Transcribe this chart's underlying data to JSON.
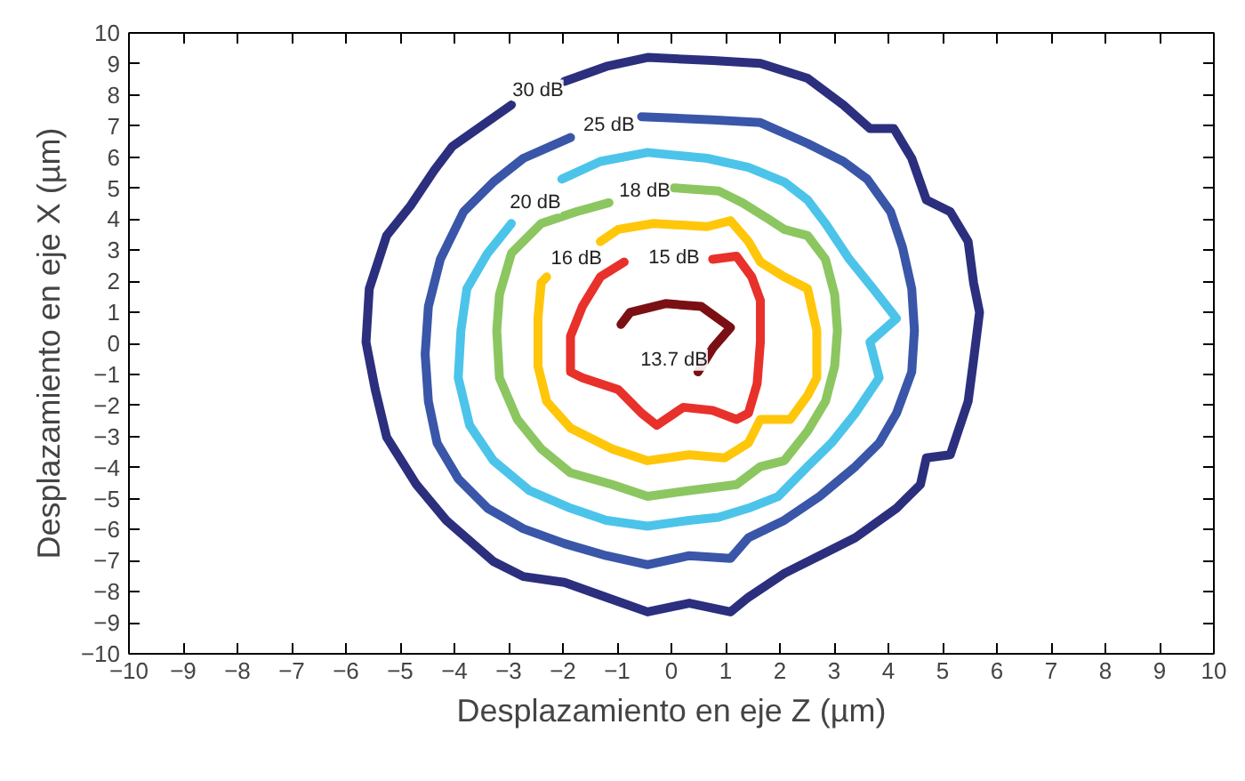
{
  "chart_data": {
    "type": "line",
    "xlabel": "Desplazamiento en eje Z (µm)",
    "ylabel": "Desplazamiento en eje X (µm)",
    "xlim": [
      -10,
      10
    ],
    "ylim": [
      -10,
      10
    ],
    "xticks": [
      -10,
      -9,
      -8,
      -7,
      -6,
      -5,
      -4,
      -3,
      -2,
      -1,
      0,
      1,
      2,
      3,
      4,
      5,
      6,
      7,
      8,
      9,
      10
    ],
    "yticks": [
      -10,
      -9,
      -8,
      -7,
      -6,
      -5,
      -4,
      -3,
      -2,
      -1,
      0,
      1,
      2,
      3,
      4,
      5,
      6,
      7,
      8,
      9,
      10
    ],
    "grid": false,
    "line_style": "solid",
    "marker": "none",
    "series": [
      {
        "color": "#2b2f7e",
        "x": [
          -1.97,
          -1.2,
          -0.44,
          0.76,
          1.64,
          2.51,
          3.17,
          3.66,
          4.1,
          4.43,
          4.7,
          5.14,
          5.47,
          5.57,
          5.68,
          5.57,
          5.47,
          5.14,
          4.7,
          4.59,
          4.15,
          3.39,
          2.73,
          2.08,
          1.42,
          1.09,
          0.33,
          -0.44,
          -1.2,
          -1.97,
          -2.73,
          -3.28,
          -4.15,
          -4.7,
          -5.25,
          -5.46,
          -5.63,
          -5.57,
          -5.25,
          -4.81,
          -4.37,
          -4.04,
          -2.95
        ],
        "values": [
          8.44,
          8.92,
          9.21,
          9.11,
          9.02,
          8.54,
          7.68,
          6.92,
          6.92,
          5.96,
          4.62,
          4.24,
          3.28,
          1.95,
          1.0,
          -0.54,
          -1.87,
          -3.59,
          -3.69,
          -4.55,
          -5.31,
          -6.26,
          -6.84,
          -7.41,
          -8.18,
          -8.65,
          -8.37,
          -8.65,
          -8.18,
          -7.7,
          -7.51,
          -7.03,
          -5.7,
          -4.55,
          -3.02,
          -1.49,
          0.04,
          1.76,
          3.47,
          4.43,
          5.58,
          6.34,
          7.68
        ]
      },
      {
        "color": "#3a56a8",
        "x": [
          -0.55,
          0.76,
          1.64,
          2.51,
          3.17,
          3.61,
          4.04,
          4.26,
          4.43,
          4.48,
          4.43,
          4.15,
          3.83,
          3.39,
          2.73,
          2.08,
          1.42,
          1.09,
          0.33,
          -0.44,
          -1.2,
          -1.97,
          -2.73,
          -3.39,
          -3.93,
          -4.32,
          -4.48,
          -4.54,
          -4.48,
          -4.26,
          -3.83,
          -3.28,
          -2.73,
          -1.86
        ],
        "values": [
          7.3,
          7.2,
          7.11,
          6.44,
          5.86,
          5.29,
          4.24,
          3.09,
          1.76,
          0.42,
          -0.92,
          -2.25,
          -3.21,
          -3.97,
          -4.93,
          -5.7,
          -6.26,
          -6.93,
          -6.84,
          -7.13,
          -6.84,
          -6.45,
          -5.97,
          -5.31,
          -4.36,
          -3.21,
          -1.87,
          -0.35,
          1.19,
          2.71,
          4.24,
          5.2,
          5.96,
          6.63
        ]
      },
      {
        "color": "#4cc4ea",
        "x": [
          -2.02,
          -1.31,
          -0.44,
          0.66,
          1.42,
          2.08,
          2.51,
          2.84,
          3.28,
          3.72,
          4.15,
          3.66,
          3.83,
          3.39,
          2.95,
          2.51,
          1.97,
          1.42,
          0.87,
          0.33,
          -0.44,
          -1.2,
          -1.86,
          -2.62,
          -3.28,
          -3.72,
          -3.93,
          -3.88,
          -3.77,
          -3.39,
          -2.95
        ],
        "values": [
          5.29,
          5.86,
          6.15,
          5.96,
          5.67,
          5.2,
          4.62,
          3.86,
          2.71,
          1.76,
          0.8,
          0.04,
          -1.11,
          -2.25,
          -3.21,
          -3.97,
          -4.93,
          -5.31,
          -5.6,
          -5.7,
          -5.89,
          -5.7,
          -5.31,
          -4.74,
          -3.78,
          -2.64,
          -1.11,
          0.42,
          1.76,
          2.9,
          3.86
        ]
      },
      {
        "color": "#8cc660",
        "x": [
          0.05,
          0.87,
          1.31,
          1.75,
          2.08,
          2.51,
          2.84,
          3.01,
          3.06,
          3.01,
          2.84,
          2.51,
          2.08,
          1.64,
          1.2,
          0.33,
          -0.44,
          -1.09,
          -1.86,
          -2.4,
          -2.84,
          -3.17,
          -3.22,
          -3.17,
          -2.95,
          -2.4,
          -1.75,
          -1.15
        ],
        "values": [
          5.01,
          4.91,
          4.53,
          4.05,
          3.67,
          3.47,
          2.71,
          1.57,
          0.42,
          -0.73,
          -1.87,
          -2.83,
          -3.78,
          -3.97,
          -4.55,
          -4.74,
          -4.93,
          -4.55,
          -4.17,
          -3.4,
          -2.45,
          -1.11,
          0.42,
          1.57,
          2.9,
          3.86,
          4.24,
          4.53
        ]
      },
      {
        "color": "#ffc60a",
        "x": [
          -1.31,
          -0.98,
          -0.33,
          0.66,
          1.09,
          1.42,
          1.64,
          2.08,
          2.51,
          2.68,
          2.68,
          2.51,
          2.19,
          1.64,
          1.42,
          0.98,
          0.33,
          -0.44,
          -1.09,
          -1.86,
          -2.3,
          -2.46,
          -2.46,
          -2.4,
          -2.3
        ],
        "values": [
          3.28,
          3.67,
          3.86,
          3.76,
          3.95,
          3.28,
          2.62,
          2.14,
          1.76,
          0.42,
          -1.11,
          -1.68,
          -2.45,
          -2.45,
          -3.21,
          -3.69,
          -3.59,
          -3.78,
          -3.4,
          -2.73,
          -1.87,
          -0.73,
          0.8,
          1.95,
          2.14
        ]
      },
      {
        "color": "#e8312a",
        "x": [
          0.76,
          1.2,
          1.48,
          1.64,
          1.64,
          1.58,
          1.42,
          1.2,
          0.76,
          0.22,
          -0.27,
          -0.55,
          -0.98,
          -1.64,
          -1.86,
          -1.86,
          -1.64,
          -1.31,
          -0.87
        ],
        "values": [
          2.71,
          2.81,
          2.14,
          1.38,
          0.04,
          -1.3,
          -2.25,
          -2.45,
          -2.16,
          -2.06,
          -2.64,
          -2.25,
          -1.49,
          -1.11,
          -0.92,
          0.23,
          1.19,
          2.14,
          2.62
        ]
      },
      {
        "color": "#7a1014",
        "x": [
          -0.93,
          -0.76,
          -0.11,
          0.55,
          1.09,
          0.76,
          0.49
        ],
        "values": [
          0.61,
          1.0,
          1.28,
          1.19,
          0.51,
          -0.16,
          -0.92
        ]
      }
    ],
    "annotations": [
      {
        "text": "30 dB",
        "x": -2.46,
        "y": 8.15
      },
      {
        "text": "25 dB",
        "x": -1.15,
        "y": 7.01
      },
      {
        "text": "20 dB",
        "x": -2.51,
        "y": 4.52
      },
      {
        "text": "18 dB",
        "x": -0.49,
        "y": 4.91
      },
      {
        "text": "16 dB",
        "x": -1.75,
        "y": 2.71
      },
      {
        "text": "15 dB",
        "x": 0.05,
        "y": 2.75
      },
      {
        "text": "13.7 dB",
        "x": 0.05,
        "y": -0.54
      }
    ]
  }
}
